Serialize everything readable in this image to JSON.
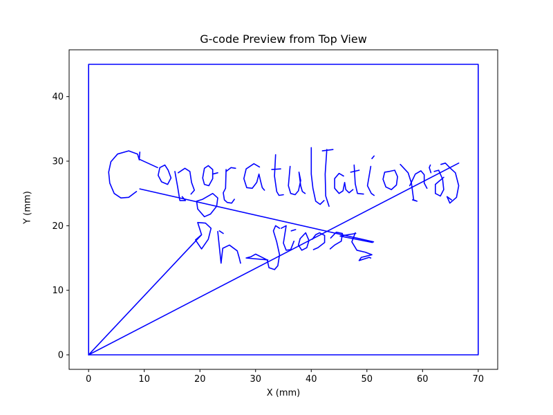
{
  "chart_data": {
    "type": "line",
    "title": "G-code Preview from Top View",
    "xlabel": "X (mm)",
    "ylabel": "Y (mm)",
    "xlim": [
      -3.5,
      73.5
    ],
    "ylim": [
      -2.25,
      47.25
    ],
    "x_ticks": [
      0,
      10,
      20,
      30,
      40,
      50,
      60,
      70
    ],
    "y_ticks": [
      0,
      10,
      20,
      30,
      40
    ],
    "grid": false,
    "series": [
      {
        "color": "#0000ff",
        "segments": [
          [
            [
              0,
              0
            ],
            [
              70,
              0
            ],
            [
              70,
              45
            ],
            [
              0,
              45
            ],
            [
              0,
              0
            ]
          ],
          [
            [
              0,
              0
            ],
            [
              20.3,
              18.6
            ],
            [
              19.6,
              20.5
            ],
            [
              21.0,
              20.4
            ],
            [
              22.0,
              19.6
            ],
            [
              21.5,
              17.9
            ],
            [
              20.3,
              16.4
            ],
            [
              19.2,
              17.8
            ],
            [
              20.3,
              18.6
            ]
          ],
          [
            [
              23.2,
              19.1
            ],
            [
              23.8,
              14.2
            ],
            [
              24.1,
              16.5
            ],
            [
              25.3,
              17.0
            ],
            [
              26.7,
              16.1
            ],
            [
              27.1,
              14.9
            ],
            [
              27.3,
              14.2
            ]
          ],
          [
            [
              23.5,
              19.2
            ],
            [
              24.2,
              18.8
            ]
          ],
          [
            [
              0,
              0
            ],
            [
              66.5,
              29.7
            ]
          ],
          [
            [
              9.2,
              31.4
            ],
            [
              9.1,
              30.3
            ],
            [
              12.4,
              29.0
            ]
          ],
          [
            [
              9.1,
              30.2
            ],
            [
              8.8,
              31.1
            ],
            [
              7.2,
              31.6
            ],
            [
              5.2,
              31.1
            ],
            [
              4.0,
              29.9
            ],
            [
              3.6,
              28.3
            ],
            [
              3.8,
              26.6
            ],
            [
              4.6,
              25.0
            ],
            [
              5.8,
              24.3
            ],
            [
              7.2,
              24.4
            ],
            [
              8.6,
              25.3
            ]
          ],
          [
            [
              14.3,
              28.6
            ],
            [
              13.7,
              29.4
            ],
            [
              12.8,
              29.0
            ],
            [
              12.5,
              27.8
            ],
            [
              13.1,
              26.8
            ],
            [
              14.2,
              26.4
            ],
            [
              14.8,
              27.4
            ],
            [
              14.3,
              28.6
            ]
          ],
          [
            [
              15.5,
              28.4
            ],
            [
              16.0,
              26.0
            ],
            [
              16.4,
              23.9
            ],
            [
              17.4,
              23.9
            ],
            [
              16.8,
              24.5
            ]
          ],
          [
            [
              16.1,
              28.2
            ],
            [
              17.3,
              28.9
            ],
            [
              18.2,
              28.4
            ],
            [
              18.5,
              26.7
            ],
            [
              19.0,
              25.5
            ],
            [
              18.4,
              24.9
            ]
          ],
          [
            [
              20.5,
              27.4
            ],
            [
              20.8,
              28.9
            ],
            [
              21.5,
              29.3
            ],
            [
              22.3,
              28.7
            ],
            [
              22.3,
              27.3
            ],
            [
              21.6,
              26.2
            ],
            [
              20.8,
              26.4
            ],
            [
              20.5,
              27.4
            ]
          ],
          [
            [
              22.3,
              28.0
            ],
            [
              23.2,
              28.2
            ]
          ],
          [
            [
              20.5,
              24.1
            ],
            [
              22.3,
              25.0
            ],
            [
              23.2,
              24.3
            ],
            [
              23.0,
              23.0
            ],
            [
              21.9,
              21.8
            ],
            [
              20.8,
              21.4
            ],
            [
              19.6,
              22.6
            ],
            [
              19.4,
              23.8
            ],
            [
              20.5,
              24.1
            ]
          ],
          [
            [
              24.7,
              28.7
            ],
            [
              24.6,
              25.8
            ],
            [
              24.2,
              25.1
            ],
            [
              24.4,
              24.0
            ],
            [
              24.9,
              23.6
            ],
            [
              25.7,
              23.5
            ],
            [
              26.2,
              24.1
            ]
          ],
          [
            [
              24.7,
              28.4
            ],
            [
              25.6,
              29.0
            ],
            [
              26.4,
              28.9
            ]
          ],
          [
            [
              30.7,
              29.1
            ],
            [
              29.7,
              29.6
            ],
            [
              28.3,
              28.8
            ],
            [
              27.9,
              27.3
            ],
            [
              28.4,
              25.9
            ],
            [
              29.4,
              25.8
            ],
            [
              30.2,
              26.7
            ],
            [
              30.6,
              28.0
            ],
            [
              30.9,
              26.9
            ],
            [
              31.2,
              25.9
            ],
            [
              31.6,
              25.5
            ]
          ],
          [
            [
              33.6,
              31.0
            ],
            [
              33.4,
              27.7
            ],
            [
              33.8,
              25.3
            ],
            [
              34.2,
              24.7
            ],
            [
              35.0,
              24.8
            ]
          ],
          [
            [
              32.9,
              28.7
            ],
            [
              34.5,
              28.8
            ]
          ],
          [
            [
              36.2,
              29.2
            ],
            [
              35.9,
              26.2
            ],
            [
              36.3,
              25.0
            ],
            [
              37.1,
              24.8
            ],
            [
              37.7,
              25.4
            ],
            [
              38.1,
              27.0
            ],
            [
              37.8,
              28.3
            ],
            [
              38.1,
              26.2
            ],
            [
              38.4,
              25.3
            ],
            [
              38.9,
              25.0
            ]
          ],
          [
            [
              40.0,
              32.1
            ],
            [
              40.0,
              28.0
            ],
            [
              40.3,
              25.8
            ],
            [
              40.8,
              23.8
            ],
            [
              41.6,
              23.3
            ],
            [
              42.3,
              23.9
            ]
          ],
          [
            [
              42.8,
              31.8
            ],
            [
              42.5,
              28.0
            ],
            [
              42.6,
              24.6
            ],
            [
              43.2,
              23.0
            ]
          ],
          [
            [
              42.0,
              31.6
            ],
            [
              43.9,
              31.8
            ]
          ],
          [
            [
              45.8,
              27.7
            ],
            [
              45.0,
              28.1
            ],
            [
              44.2,
              27.3
            ],
            [
              44.2,
              25.8
            ],
            [
              45.0,
              25.0
            ],
            [
              45.7,
              25.4
            ],
            [
              46.0,
              26.7
            ],
            [
              46.2,
              25.6
            ],
            [
              46.8,
              25.1
            ],
            [
              47.5,
              25.6
            ]
          ],
          [
            [
              47.7,
              29.4
            ],
            [
              47.9,
              26.5
            ],
            [
              48.3,
              25.0
            ],
            [
              49.4,
              24.9
            ]
          ],
          [
            [
              47.1,
              28.3
            ],
            [
              48.6,
              28.6
            ]
          ],
          [
            [
              50.7,
              29.2
            ],
            [
              50.1,
              26.2
            ],
            [
              50.8,
              25.0
            ],
            [
              51.3,
              24.7
            ]
          ],
          [
            [
              50.9,
              30.4
            ],
            [
              51.3,
              30.8
            ]
          ],
          [
            [
              54.0,
              28.4
            ],
            [
              53.2,
              28.3
            ],
            [
              52.9,
              27.2
            ],
            [
              53.4,
              26.0
            ],
            [
              54.4,
              25.6
            ],
            [
              55.3,
              26.3
            ],
            [
              55.5,
              27.6
            ],
            [
              55.0,
              28.6
            ],
            [
              54.0,
              28.4
            ]
          ],
          [
            [
              56.0,
              29.5
            ],
            [
              57.4,
              28.2
            ],
            [
              58.0,
              26.6
            ],
            [
              58.4,
              24.0
            ],
            [
              59.0,
              23.8
            ],
            [
              58.2,
              24.0
            ]
          ],
          [
            [
              57.7,
              26.2
            ],
            [
              58.7,
              28.0
            ],
            [
              59.7,
              28.5
            ],
            [
              60.3,
              27.9
            ],
            [
              60.3,
              26.6
            ],
            [
              60.8,
              25.8
            ]
          ],
          [
            [
              61.5,
              28.2
            ],
            [
              61.2,
              29.0
            ],
            [
              61.4,
              29.4
            ]
          ],
          [
            [
              62.1,
              28.4
            ],
            [
              62.9,
              28.6
            ],
            [
              63.6,
              27.2
            ],
            [
              63.8,
              25.6
            ],
            [
              63.2,
              24.6
            ],
            [
              62.3,
              25.0
            ],
            [
              62.3,
              26.4
            ],
            [
              63.8,
              27.5
            ]
          ],
          [
            [
              63.3,
              29.5
            ],
            [
              64.1,
              29.7
            ],
            [
              65.0,
              28.9
            ],
            [
              65.9,
              28.2
            ],
            [
              66.5,
              26.2
            ],
            [
              66.1,
              24.4
            ],
            [
              64.9,
              23.5
            ],
            [
              64.4,
              24.5
            ],
            [
              65.2,
              24.0
            ]
          ],
          [
            [
              9.2,
              25.7
            ],
            [
              51.2,
              17.5
            ]
          ],
          [
            [
              51.0,
              17.4
            ],
            [
              45.2,
              18.4
            ],
            [
              48.0,
              18.8
            ]
          ],
          [
            [
              32.1,
              14.7
            ],
            [
              30.0,
              15.6
            ],
            [
              29.2,
              15.2
            ],
            [
              28.3,
              15.0
            ],
            [
              32.2,
              14.7
            ]
          ],
          [
            [
              32.1,
              14.7
            ],
            [
              32.4,
              13.5
            ],
            [
              33.4,
              13.2
            ],
            [
              34.0,
              13.8
            ],
            [
              34.3,
              15.5
            ],
            [
              33.8,
              17.5
            ],
            [
              33.2,
              19.2
            ],
            [
              33.6,
              20.0
            ],
            [
              34.3,
              19.6
            ]
          ],
          [
            [
              34.6,
              19.6
            ],
            [
              35.5,
              20.0
            ],
            [
              35.0,
              17.3
            ],
            [
              35.5,
              16.2
            ],
            [
              36.3,
              16.3
            ],
            [
              36.9,
              17.6
            ]
          ],
          [
            [
              36.4,
              19.2
            ],
            [
              37.2,
              19.4
            ]
          ],
          [
            [
              38.0,
              18.0
            ],
            [
              37.7,
              17.0
            ],
            [
              38.3,
              16.2
            ],
            [
              39.2,
              16.6
            ],
            [
              39.6,
              17.7
            ],
            [
              39.0,
              18.9
            ],
            [
              38.0,
              18.0
            ]
          ],
          [
            [
              40.2,
              17.9
            ],
            [
              40.8,
              18.6
            ],
            [
              41.5,
              18.9
            ],
            [
              42.4,
              18.5
            ],
            [
              42.4,
              17.4
            ],
            [
              41.2,
              16.6
            ],
            [
              40.4,
              16.3
            ]
          ],
          [
            [
              43.5,
              18.1
            ],
            [
              44.5,
              19.0
            ],
            [
              45.6,
              18.8
            ],
            [
              45.4,
              17.6
            ],
            [
              44.2,
              17.0
            ],
            [
              43.4,
              16.4
            ]
          ],
          [
            [
              47.9,
              18.9
            ],
            [
              47.3,
              17.5
            ],
            [
              48.2,
              16.2
            ],
            [
              49.7,
              15.9
            ],
            [
              50.9,
              15.5
            ],
            [
              49.0,
              15.1
            ],
            [
              48.6,
              14.6
            ],
            [
              50.4,
              15.1
            ],
            [
              50.7,
              15.0
            ]
          ]
        ]
      }
    ]
  }
}
